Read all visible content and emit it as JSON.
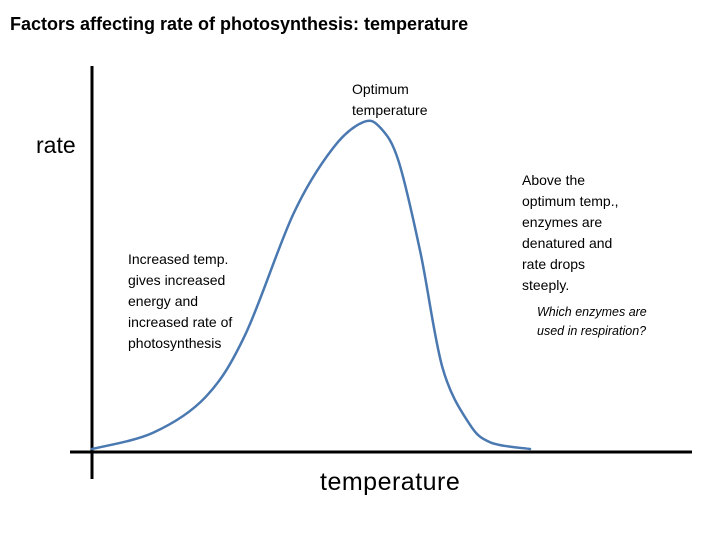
{
  "chart_data": {
    "type": "line",
    "title": "Factors affecting rate of photosynthesis: temperature",
    "xlabel": "temperature",
    "ylabel": "rate",
    "xlim": [
      0,
      100
    ],
    "ylim": [
      0,
      100
    ],
    "grid": false,
    "series": [
      {
        "name": "rate of photosynthesis",
        "color": "#4a78b0",
        "x": [
          0,
          14,
          26,
          35,
          46,
          55,
          62,
          66,
          70,
          75,
          80,
          86,
          91,
          100
        ],
        "y": [
          0,
          5,
          16,
          35,
          72,
          92,
          100,
          98,
          88,
          60,
          25,
          8,
          2,
          0
        ]
      }
    ],
    "annotations": {
      "optimum": "Optimum\ntemperature",
      "increase": "Increased temp.\ngives  increased\nenergy and\nincreased rate of\nphotosynthesis",
      "denature": "Above the\noptimum temp.,\nenzymes are\ndenatured and\nrate drops\nsteeply.",
      "question": "Which enzymes are\nused in respiration?"
    }
  }
}
